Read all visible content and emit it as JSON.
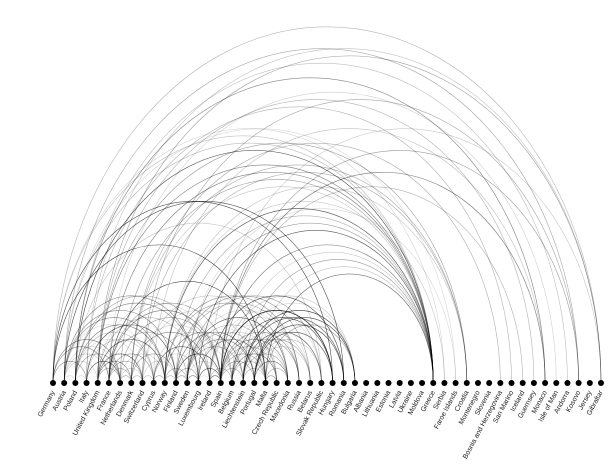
{
  "nodes": [
    {
      "label": "Germany"
    },
    {
      "label": "Austria"
    },
    {
      "label": "Poland"
    },
    {
      "label": "Italy"
    },
    {
      "label": "United Kingdom"
    },
    {
      "label": "France"
    },
    {
      "label": "Netherlands"
    },
    {
      "label": "Denmark"
    },
    {
      "label": "Switzerland"
    },
    {
      "label": "Cyprus"
    },
    {
      "label": "Norway"
    },
    {
      "label": "Finland"
    },
    {
      "label": "Sweden"
    },
    {
      "label": "Luxembourg"
    },
    {
      "label": "Ireland"
    },
    {
      "label": "Spain"
    },
    {
      "label": "Belgium"
    },
    {
      "label": "Liechtenstein"
    },
    {
      "label": "Portugal"
    },
    {
      "label": "Malta"
    },
    {
      "label": "Czech Republic"
    },
    {
      "label": "Macedonia"
    },
    {
      "label": "Russia"
    },
    {
      "label": "Belarus"
    },
    {
      "label": "Slovak Republic"
    },
    {
      "label": "Hungary"
    },
    {
      "label": "Romania"
    },
    {
      "label": "Bulgaria"
    },
    {
      "label": "Albania"
    },
    {
      "label": "Lithuania"
    },
    {
      "label": "Estonia"
    },
    {
      "label": "Latvia"
    },
    {
      "label": "Ukraine"
    },
    {
      "label": "Moldova"
    },
    {
      "label": "Greece"
    },
    {
      "label": "Serbia"
    },
    {
      "label": "Faroe Islands"
    },
    {
      "label": "Croatia"
    },
    {
      "label": "Montenegro"
    },
    {
      "label": "Slovenia"
    },
    {
      "label": "Bosnia and Herzegovina"
    },
    {
      "label": "San Marino"
    },
    {
      "label": "Iceland"
    },
    {
      "label": "Guernsey"
    },
    {
      "label": "Monaco"
    },
    {
      "label": "Isle of Man"
    },
    {
      "label": "Andorra"
    },
    {
      "label": "Kosovo"
    },
    {
      "label": "Jersey"
    },
    {
      "label": "Gibraltar"
    }
  ]
}
